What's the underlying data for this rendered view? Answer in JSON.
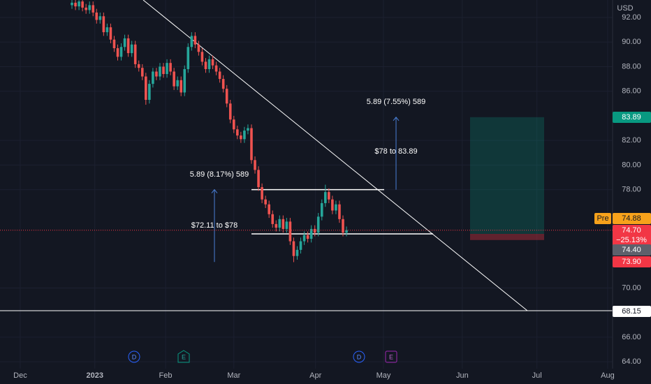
{
  "chart_data": {
    "type": "candlestick",
    "currency": "USD",
    "colors": {
      "up": "#26a69a",
      "down": "#ef5350"
    },
    "open": [
      93.0,
      93.2,
      92.9,
      93.3,
      92.8,
      92.6,
      93.0,
      92.4,
      91.8,
      92.1,
      90.8,
      91.2,
      90.2,
      89.5,
      88.8,
      89.6,
      90.3,
      89.1,
      89.8,
      88.2,
      87.9,
      87.2,
      85.3,
      86.6,
      87.6,
      87.2,
      88.0,
      87.4,
      88.3,
      87.6,
      86.4,
      86.9,
      85.9,
      87.8,
      89.6,
      90.5,
      89.8,
      89.2,
      88.4,
      87.8,
      88.6,
      88.1,
      87.6,
      87.0,
      86.2,
      85.0,
      83.7,
      82.9,
      82.4,
      82.1,
      82.8,
      83.0,
      80.4,
      79.6,
      78.2,
      77.2,
      76.8,
      76.0,
      75.2,
      74.9,
      75.6,
      74.8,
      75.4,
      73.8,
      72.6,
      73.1,
      73.8,
      74.3,
      74.0,
      74.8,
      74.5,
      75.8,
      76.9,
      77.8,
      77.2,
      76.3,
      76.8,
      75.6,
      74.5
    ],
    "high": [
      93.5,
      93.5,
      93.6,
      93.6,
      93.1,
      93.3,
      93.3,
      92.7,
      92.4,
      92.4,
      91.5,
      91.5,
      90.5,
      89.8,
      89.9,
      90.6,
      90.6,
      90.1,
      90.1,
      88.5,
      88.2,
      87.5,
      86.9,
      87.9,
      87.9,
      88.3,
      88.3,
      88.6,
      88.6,
      87.9,
      87.2,
      87.2,
      88.1,
      89.9,
      90.8,
      90.8,
      90.1,
      89.5,
      88.7,
      88.9,
      88.9,
      88.4,
      87.9,
      87.3,
      86.5,
      85.3,
      84.0,
      83.2,
      82.7,
      83.1,
      83.3,
      83.3,
      80.7,
      79.9,
      78.5,
      77.5,
      77.1,
      76.3,
      75.5,
      75.9,
      75.9,
      75.7,
      75.7,
      74.1,
      73.4,
      74.1,
      74.6,
      74.6,
      75.1,
      75.1,
      76.1,
      77.2,
      78.4,
      78.1,
      77.5,
      77.1,
      77.1,
      75.9,
      75.0
    ],
    "low": [
      92.7,
      92.6,
      92.6,
      92.5,
      92.3,
      92.3,
      92.1,
      91.5,
      91.5,
      90.5,
      90.5,
      89.9,
      89.2,
      88.5,
      88.5,
      89.3,
      88.8,
      88.8,
      87.9,
      87.6,
      86.9,
      84.9,
      85.0,
      86.3,
      86.9,
      86.9,
      87.1,
      87.1,
      87.3,
      86.1,
      86.1,
      85.6,
      85.6,
      87.5,
      89.3,
      89.5,
      88.9,
      88.1,
      87.5,
      87.5,
      87.8,
      87.3,
      86.7,
      85.9,
      84.7,
      83.4,
      82.6,
      82.1,
      81.8,
      81.8,
      82.5,
      80.1,
      79.3,
      77.9,
      76.9,
      76.5,
      75.7,
      74.9,
      74.6,
      74.6,
      74.5,
      74.5,
      73.5,
      72.1,
      72.3,
      72.8,
      73.5,
      73.7,
      73.7,
      74.2,
      74.2,
      75.5,
      76.6,
      76.9,
      76.0,
      76.0,
      75.3,
      74.2,
      74.2
    ],
    "close": [
      93.2,
      92.9,
      93.3,
      92.8,
      92.6,
      93.0,
      92.4,
      91.8,
      92.1,
      90.8,
      91.2,
      90.2,
      89.5,
      88.8,
      89.6,
      90.3,
      89.1,
      89.8,
      88.2,
      87.9,
      87.2,
      85.3,
      86.6,
      87.6,
      87.2,
      88.0,
      87.4,
      88.3,
      87.6,
      86.4,
      86.9,
      85.9,
      87.8,
      89.6,
      90.5,
      89.8,
      89.2,
      88.4,
      87.8,
      88.6,
      88.1,
      87.6,
      87.0,
      86.2,
      85.0,
      83.7,
      82.9,
      82.4,
      82.1,
      82.8,
      83.0,
      80.4,
      79.6,
      78.2,
      77.2,
      76.8,
      76.0,
      75.2,
      74.9,
      75.6,
      74.8,
      75.4,
      73.8,
      72.6,
      73.1,
      73.8,
      74.3,
      74.0,
      74.8,
      74.5,
      75.8,
      76.9,
      77.8,
      77.2,
      76.3,
      76.8,
      75.6,
      74.5,
      74.7
    ],
    "xlim": [
      -20.44,
      153.6
    ],
    "xticks": [
      {
        "value": -14.7,
        "label": "Dec"
      },
      {
        "value": 6.5,
        "label": "2023"
      },
      {
        "value": 26.6,
        "label": "Feb"
      },
      {
        "value": 46.0,
        "label": "Mar"
      },
      {
        "value": 69.2,
        "label": "Apr"
      },
      {
        "value": 88.5,
        "label": "May"
      },
      {
        "value": 110.9,
        "label": "Jun"
      },
      {
        "value": 132.1,
        "label": "Jul"
      },
      {
        "value": 152.2,
        "label": "Aug"
      }
    ],
    "ylim": [
      63.44,
      93.42
    ],
    "yticks": [
      {
        "value": 92,
        "label": "92.00"
      },
      {
        "value": 90,
        "label": "90.00"
      },
      {
        "value": 88,
        "label": "88.00"
      },
      {
        "value": 86,
        "label": "86.00"
      },
      {
        "value": 82,
        "label": "82.00"
      },
      {
        "value": 80,
        "label": "80.00"
      },
      {
        "value": 78,
        "label": "78.00"
      },
      {
        "value": 70,
        "label": "70.00"
      },
      {
        "value": 66,
        "label": "66.00"
      },
      {
        "value": 64,
        "label": "64.00"
      }
    ],
    "grid": true,
    "measures": [
      {
        "from": 72.11,
        "to": 78,
        "label": "$72.11 to $78",
        "caption": "5.89 (8.17%) 589"
      },
      {
        "from": 78,
        "to": 83.89,
        "label": "$78 to 83.89",
        "caption": "5.89 (7.55%) 589"
      }
    ],
    "position": {
      "target": 83.89,
      "entry": 74.4,
      "stop": 73.9
    },
    "price_tags": [
      {
        "value": 83.89,
        "label": "83.89",
        "color": "#089981"
      },
      {
        "value": 74.88,
        "label": "74.88",
        "color": "#f7a21b",
        "session": "Pre"
      },
      {
        "value": 74.7,
        "label": "74.70",
        "color": "#f23645",
        "change": {
          "value": -25.13,
          "label": "−25.13%"
        }
      },
      {
        "value": 74.4,
        "label": "74.40",
        "color": "#5d606b"
      },
      {
        "value": 73.9,
        "label": "73.90",
        "color": "#f23645"
      },
      {
        "value": 68.15,
        "label": "68.15",
        "color": "#ffffff"
      }
    ],
    "events": [
      "D",
      "E",
      "D",
      "E"
    ]
  }
}
